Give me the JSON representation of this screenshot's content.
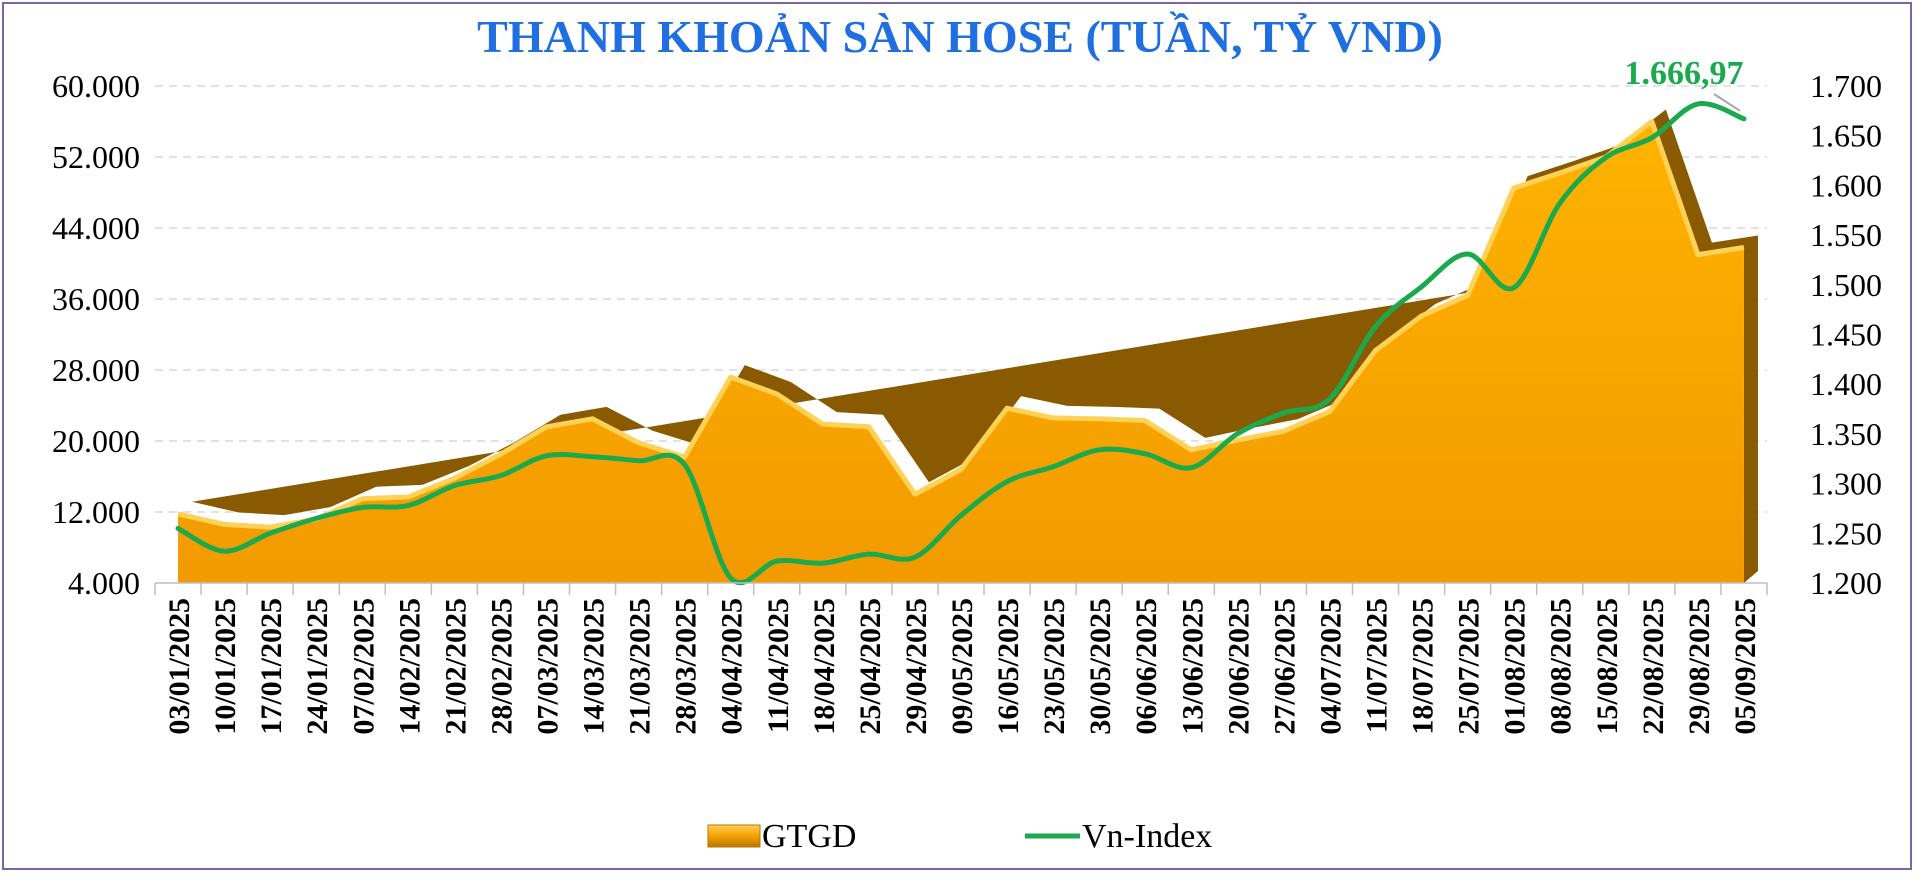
{
  "colors": {
    "title": "#1f6fe0",
    "area_fill": "#f5a000",
    "area_light": "#ffd257",
    "area_dark": "#8a5a00",
    "line": "#1aaa4d",
    "annotation": "#1aaa4d",
    "grid": "#d9d9d9",
    "frame": "#8064a2"
  },
  "chart_data": {
    "type": "area",
    "title": "THANH KHOẢN SÀN HOSE (TUẦN, TỶ VND)",
    "categories": [
      "03/01/2025",
      "10/01/2025",
      "17/01/2025",
      "24/01/2025",
      "07/02/2025",
      "14/02/2025",
      "21/02/2025",
      "28/02/2025",
      "07/03/2025",
      "14/03/2025",
      "21/03/2025",
      "28/03/2025",
      "04/04/2025",
      "11/04/2025",
      "18/04/2025",
      "25/04/2025",
      "29/04/2025",
      "09/05/2025",
      "16/05/2025",
      "23/05/2025",
      "30/05/2025",
      "06/06/2025",
      "13/06/2025",
      "20/06/2025",
      "27/06/2025",
      "04/07/2025",
      "11/07/2025",
      "18/07/2025",
      "25/07/2025",
      "01/08/2025",
      "08/08/2025",
      "15/08/2025",
      "22/08/2025",
      "29/08/2025",
      "05/09/2025"
    ],
    "y_left": {
      "min": 4000,
      "max": 60000,
      "ticks": [
        "4.000",
        "12.000",
        "20.000",
        "28.000",
        "36.000",
        "44.000",
        "52.000",
        "60.000"
      ]
    },
    "y_right": {
      "min": 1200,
      "max": 1700,
      "ticks": [
        "1.200",
        "1.250",
        "1.300",
        "1.350",
        "1.400",
        "1.450",
        "1.500",
        "1.550",
        "1.600",
        "1.650",
        "1.700"
      ]
    },
    "grid": true,
    "legend_position": "bottom",
    "series": [
      {
        "name": "GTGD",
        "type": "area",
        "axis": "left",
        "values": [
          11800,
          10600,
          10300,
          11200,
          13500,
          13700,
          15800,
          18500,
          21600,
          22500,
          19800,
          18200,
          27200,
          25300,
          21900,
          21600,
          14000,
          16800,
          23700,
          22600,
          22500,
          22300,
          19000,
          20100,
          21100,
          23300,
          30200,
          34100,
          36400,
          48500,
          50200,
          52000,
          56000,
          41000,
          41800
        ]
      },
      {
        "name": "Vn-Index",
        "type": "line",
        "axis": "right",
        "values": [
          1255,
          1232,
          1250,
          1265,
          1276,
          1278,
          1298,
          1308,
          1328,
          1327,
          1323,
          1319,
          1205,
          1222,
          1220,
          1229,
          1226,
          1268,
          1302,
          1317,
          1334,
          1330,
          1316,
          1350,
          1371,
          1385,
          1458,
          1498,
          1531,
          1497,
          1582,
          1628,
          1648,
          1682,
          1666.97
        ]
      }
    ],
    "annotation": {
      "text": "1.666,97",
      "series": "Vn-Index",
      "index": 34
    }
  },
  "legend": {
    "area_label": "GTGD",
    "line_label": "Vn-Index"
  }
}
